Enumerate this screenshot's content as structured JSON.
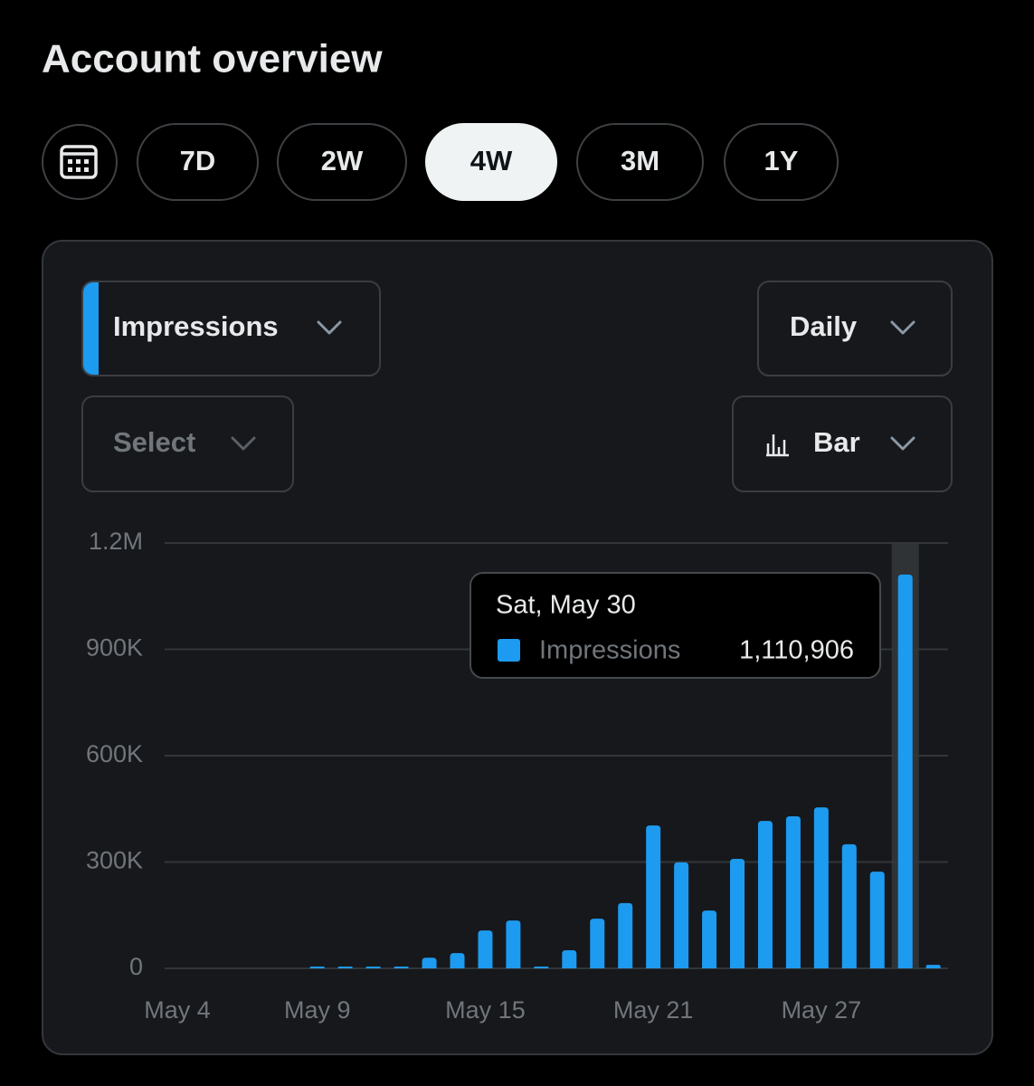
{
  "header": {
    "title": "Account overview"
  },
  "ranges": [
    "7D",
    "2W",
    "4W",
    "3M",
    "1Y"
  ],
  "selected_range": 2,
  "controls": {
    "metric": "Impressions",
    "interval": "Daily",
    "compare": "Select",
    "chart_type": "Bar"
  },
  "chart_data": {
    "type": "bar",
    "categories": [
      "May 4",
      null,
      null,
      null,
      null,
      "May 9",
      null,
      null,
      null,
      null,
      null,
      "May 15",
      null,
      null,
      null,
      null,
      null,
      "May 21",
      null,
      null,
      null,
      null,
      null,
      "May 27",
      null,
      null,
      null,
      null
    ],
    "series": [
      {
        "name": "Impressions",
        "color": "#1d9bf0",
        "values": [
          null,
          null,
          null,
          null,
          null,
          5000,
          5000,
          5000,
          5000,
          30000,
          43000,
          107000,
          135000,
          5000,
          51000,
          140000,
          184000,
          403000,
          299000,
          163000,
          309000,
          416000,
          429000,
          454000,
          350000,
          273000,
          1110906,
          10000
        ],
        "value_labels": [
          null,
          null,
          null,
          null,
          null,
          null,
          null,
          null,
          null,
          null,
          null,
          null,
          null,
          null,
          null,
          null,
          null,
          null,
          null,
          null,
          null,
          null,
          null,
          null,
          null,
          null,
          "1,110,906",
          null
        ]
      }
    ],
    "ylim": [
      0,
      1200000
    ],
    "yticks": [
      0,
      {
        "value": 300000,
        "label": "300K"
      },
      {
        "value": 600000,
        "label": "600K"
      },
      {
        "value": 900000,
        "label": "900K"
      },
      {
        "value": 1200000,
        "label": "1.2M"
      }
    ],
    "grid": true,
    "tooltip": {
      "title": "Sat, May 30",
      "index": 26
    }
  }
}
